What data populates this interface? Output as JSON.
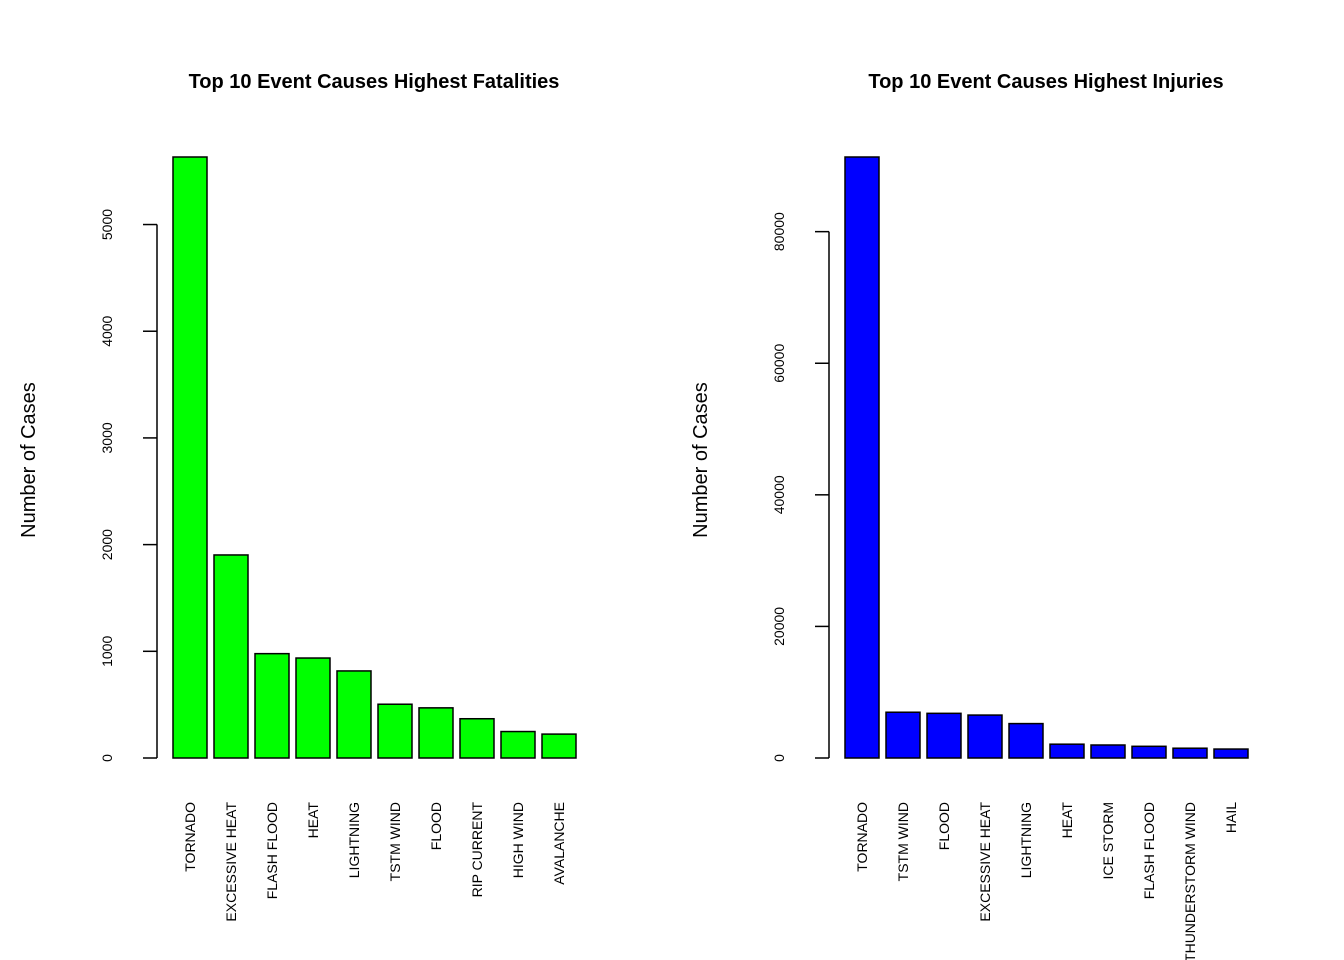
{
  "chart_data": [
    {
      "type": "bar",
      "title": "Top 10 Event Causes Highest Fatalities",
      "xlabel": "",
      "ylabel": "Number of Cases",
      "categories": [
        "TORNADO",
        "EXCESSIVE HEAT",
        "FLASH FLOOD",
        "HEAT",
        "LIGHTNING",
        "TSTM WIND",
        "FLOOD",
        "RIP CURRENT",
        "HIGH WIND",
        "AVALANCHE"
      ],
      "values": [
        5633,
        1903,
        978,
        937,
        816,
        504,
        470,
        368,
        248,
        224
      ],
      "yticks": [
        0,
        1000,
        2000,
        3000,
        4000,
        5000
      ],
      "ylim": [
        0,
        5633
      ],
      "color": "#00ff00",
      "grid": false
    },
    {
      "type": "bar",
      "title": "Top 10 Event Causes Highest Injuries",
      "xlabel": "",
      "ylabel": "Number of Cases",
      "categories": [
        "TORNADO",
        "TSTM WIND",
        "FLOOD",
        "EXCESSIVE HEAT",
        "LIGHTNING",
        "HEAT",
        "ICE STORM",
        "FLASH FLOOD",
        "THUNDERSTORM WIND",
        "HAIL"
      ],
      "values": [
        91346,
        6957,
        6789,
        6525,
        5230,
        2100,
        1975,
        1777,
        1488,
        1361
      ],
      "yticks": [
        0,
        20000,
        40000,
        60000,
        80000
      ],
      "ylim": [
        0,
        91346
      ],
      "color": "#0000ff",
      "grid": false
    }
  ]
}
